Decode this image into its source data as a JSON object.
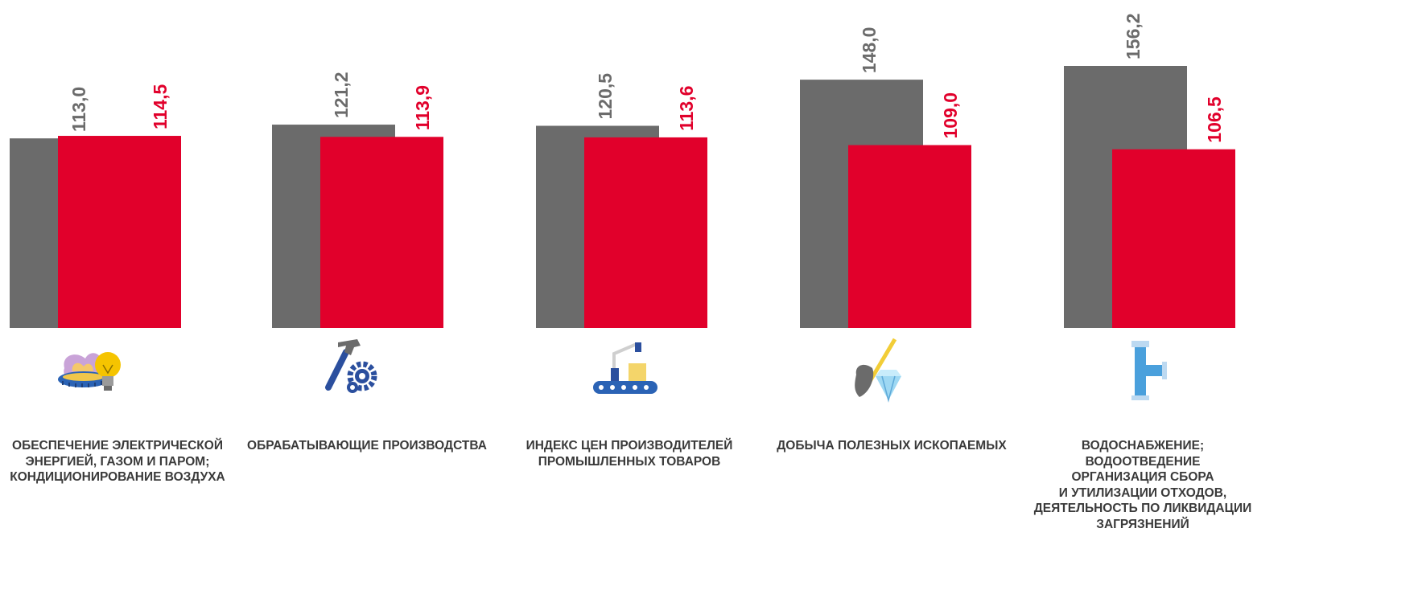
{
  "chart_data": {
    "type": "bar",
    "categories": [
      [
        "ОБЕСПЕЧЕНИЕ ЭЛЕКТРИЧЕСКОЙ",
        "ЭНЕРГИЕЙ, ГАЗОМ И ПАРОМ;",
        "КОНДИЦИОНИРОВАНИЕ ВОЗДУХА"
      ],
      [
        "ОБРАБАТЫВАЮЩИЕ ПРОИЗВОДСТВА"
      ],
      [
        "ИНДЕКС ЦЕН ПРОИЗВОДИТЕЛЕЙ",
        "ПРОМЫШЛЕННЫХ ТОВАРОВ"
      ],
      [
        "ДОБЫЧА ПОЛЕЗНЫХ ИСКОПАЕМЫХ"
      ],
      [
        "ВОДОСНАБЖЕНИЕ;",
        "ВОДООТВЕДЕНИЕ",
        "ОРГАНИЗАЦИЯ СБОРА",
        "И УТИЛИЗАЦИИ ОТХОДОВ,",
        "ДЕЯТЕЛЬНОСТЬ ПО ЛИКВИДАЦИИ",
        "ЗАГРЯЗНЕНИЙ"
      ]
    ],
    "series": [
      {
        "values": [
          113.0,
          121.2,
          120.5,
          148.0,
          156.2
        ],
        "labels": [
          "113,0",
          "121,2",
          "120,5",
          "148,0",
          "156,2"
        ],
        "color": "#6b6b6b"
      },
      {
        "values": [
          114.5,
          113.9,
          113.6,
          109.0,
          106.5
        ],
        "labels": [
          "114,5",
          "113,9",
          "113,6",
          "109,0",
          "106,5"
        ],
        "color": "#e1002b"
      }
    ],
    "grid": false,
    "legend": "none"
  },
  "icons": [
    "gas-flame-lightbulb-icon",
    "hammer-gear-icon",
    "robot-arm-conveyor-icon",
    "shovel-diamond-icon",
    "water-pipe-icon"
  ],
  "label_color": "#3a3a3a"
}
